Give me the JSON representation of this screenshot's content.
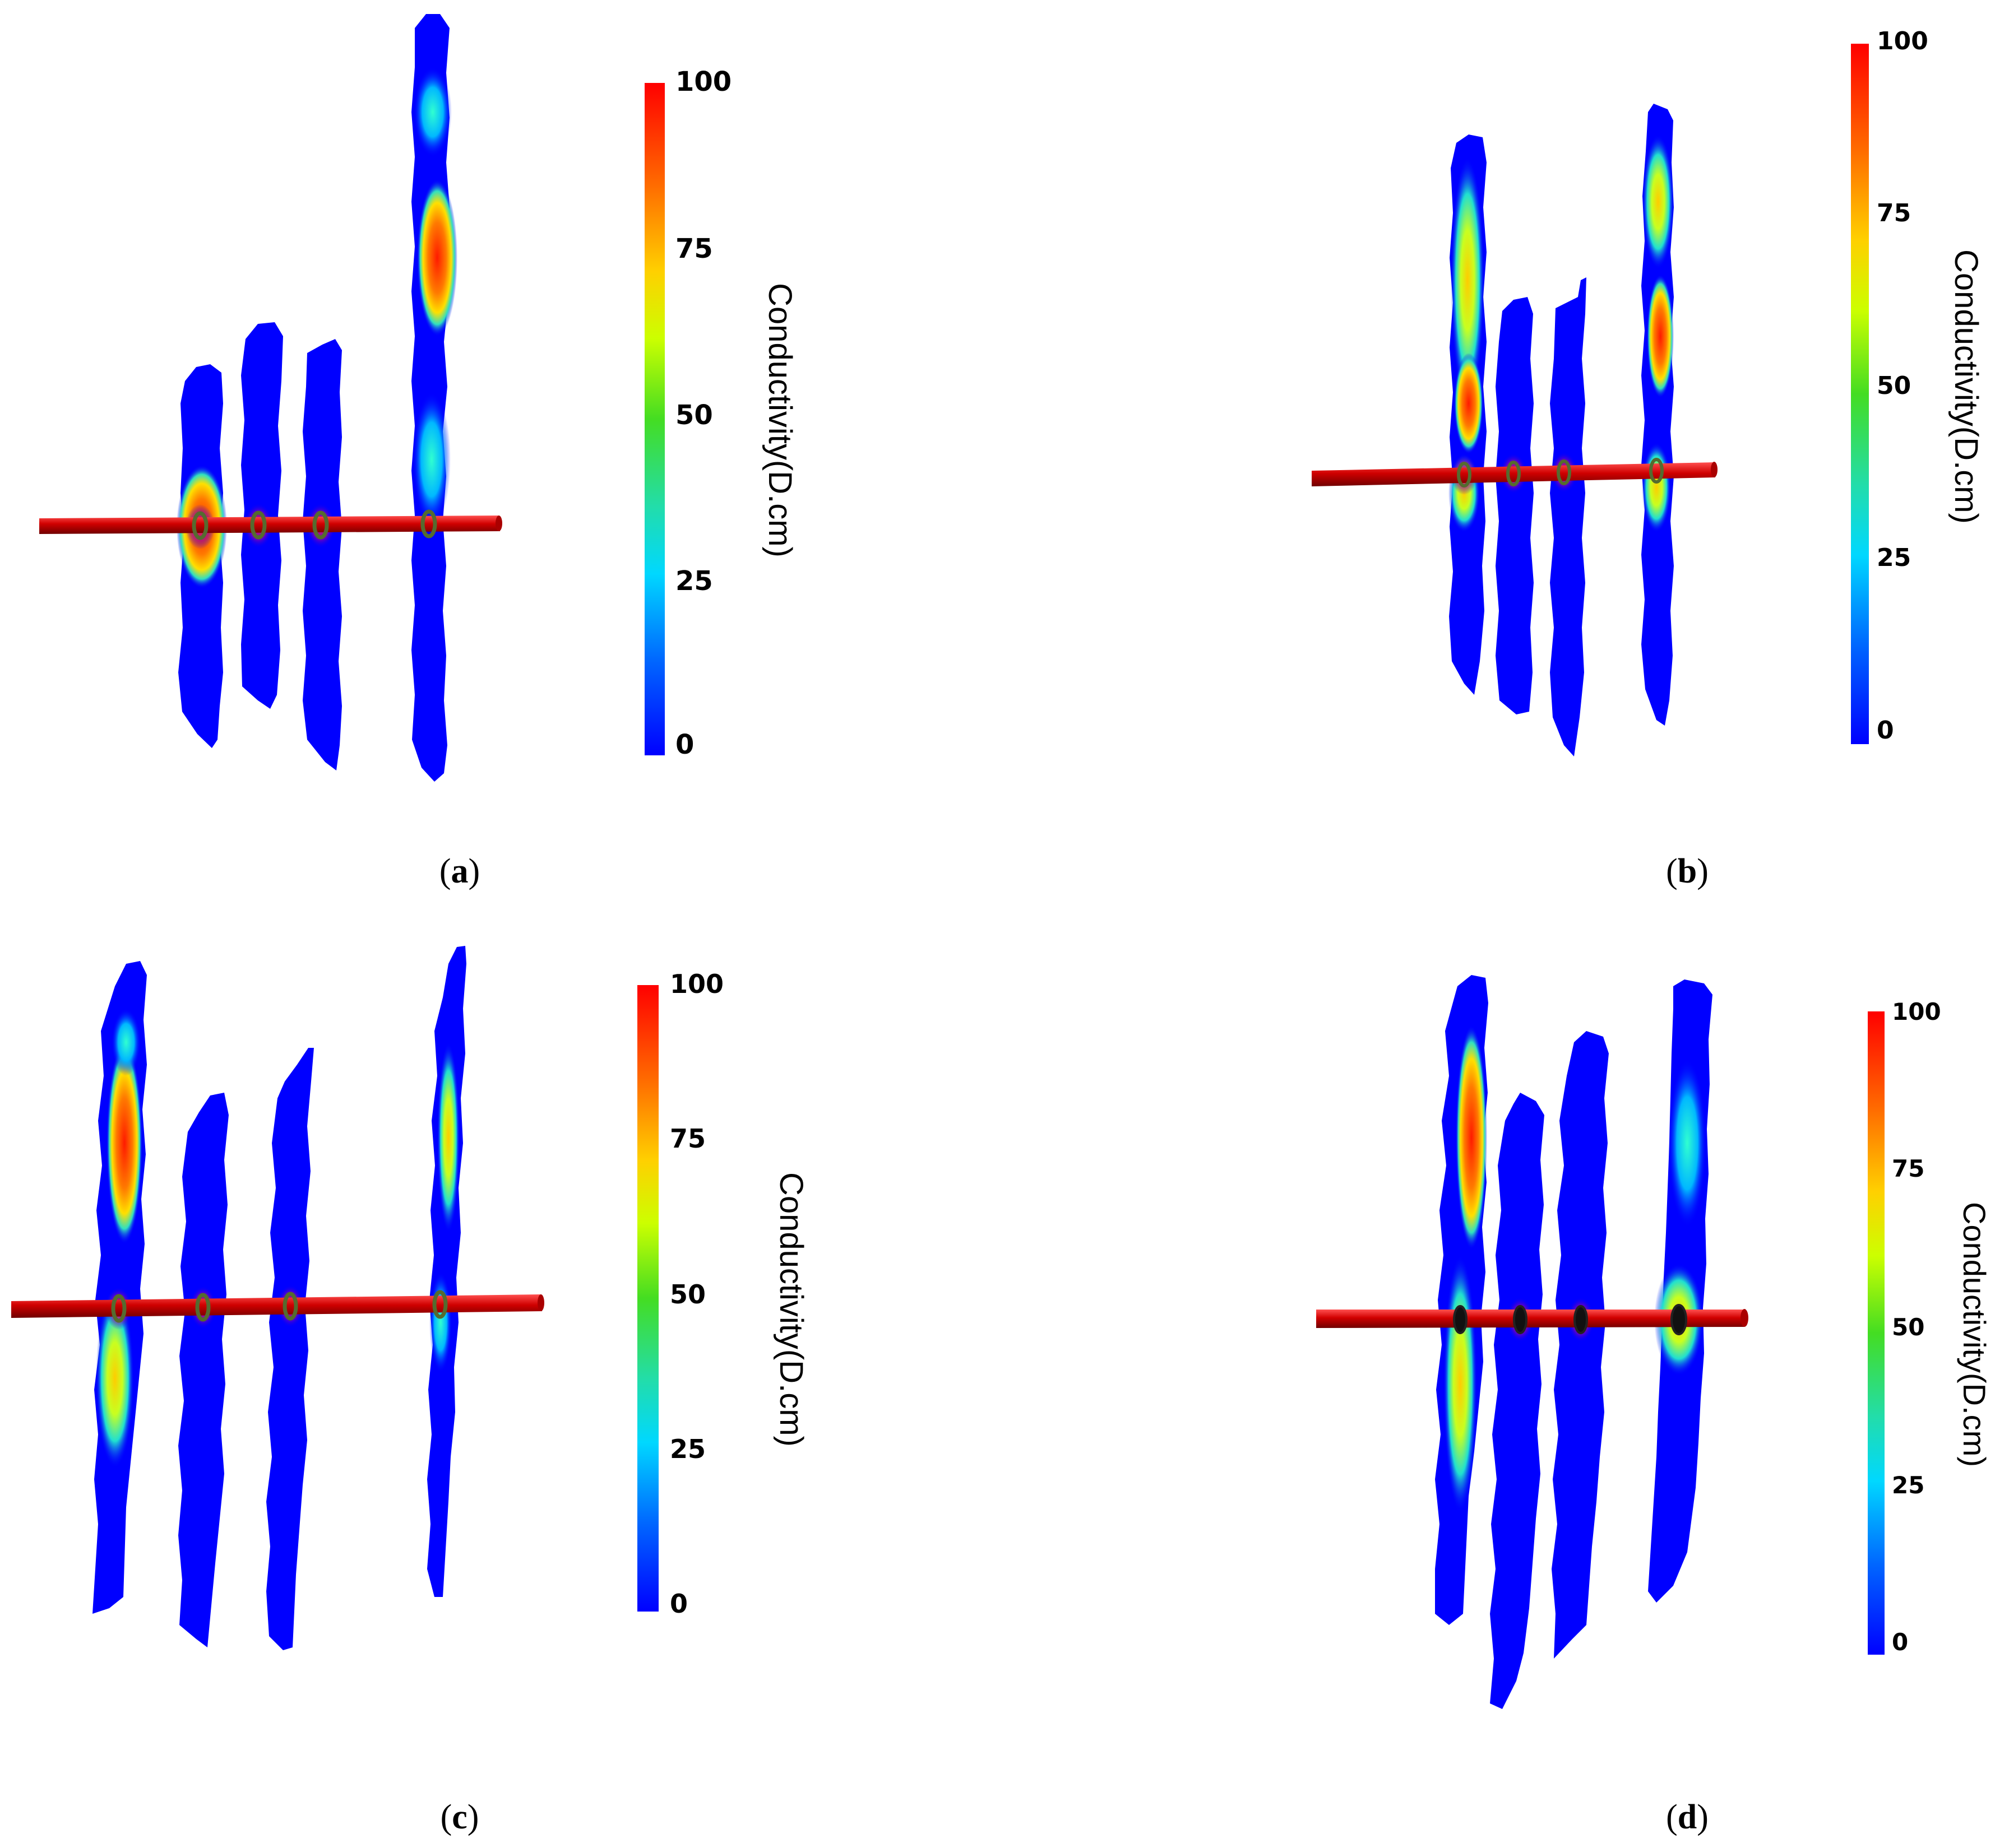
{
  "colorbar": {
    "title": "Conductivity(D.cm)",
    "ticks": [
      "100",
      "75",
      "50",
      "25",
      "0"
    ],
    "range": [
      0,
      100
    ],
    "colormap": [
      "#ff0000",
      "#ff8800",
      "#ffff00",
      "#33dd33",
      "#00e0ff",
      "#0055ff",
      "#0000ff"
    ]
  },
  "colors": {
    "fracture_base": "#0000ff",
    "wellbore": "#cc0000",
    "wellbore_highlight": "#ff4444",
    "perforation_ring": "#556b2f"
  },
  "panels": [
    {
      "id": "a",
      "label": "a",
      "fractures": 4
    },
    {
      "id": "b",
      "label": "b",
      "fractures": 4
    },
    {
      "id": "c",
      "label": "c",
      "fractures": 4
    },
    {
      "id": "d",
      "label": "d",
      "fractures": 4
    }
  ]
}
